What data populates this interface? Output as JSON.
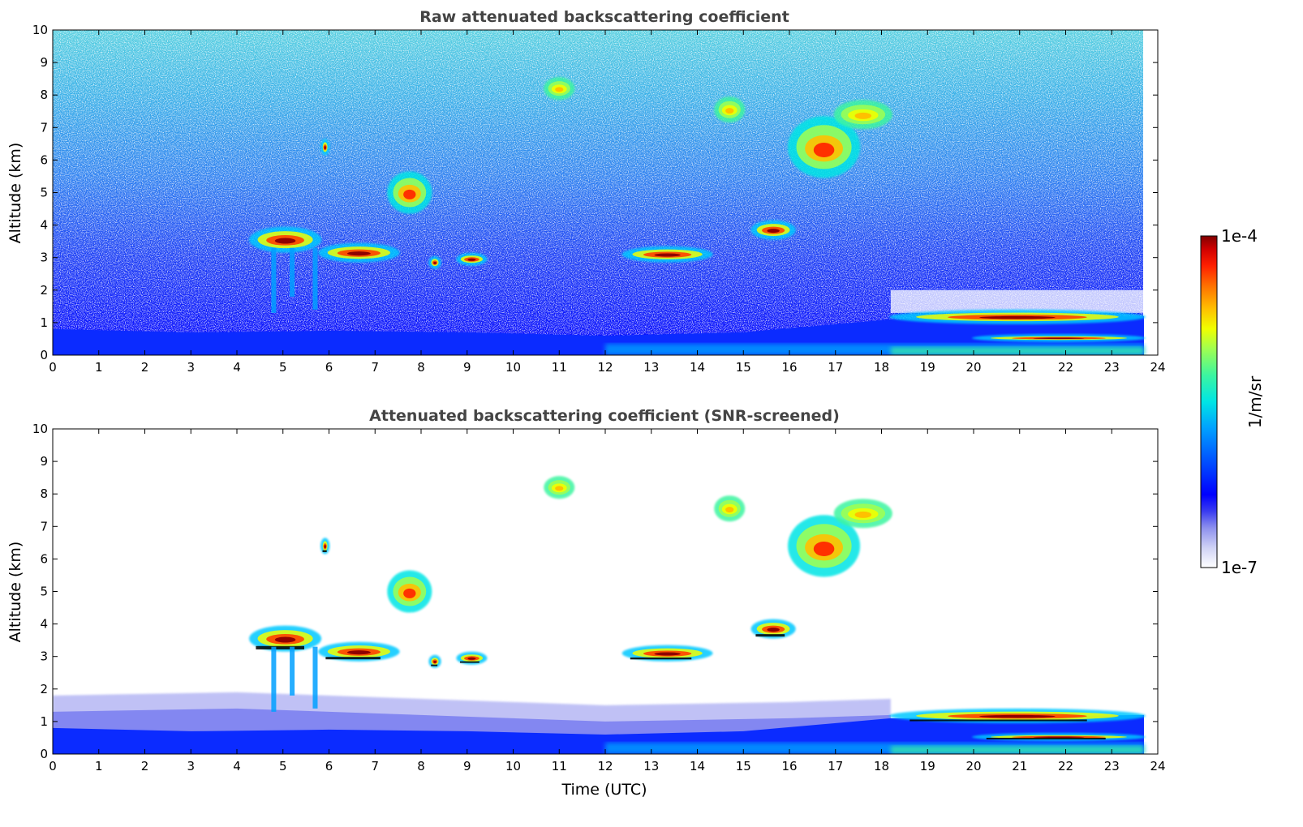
{
  "figure": {
    "colorbar": {
      "label": "1/m/sr",
      "max_label": "1e-4",
      "min_label": "1e-7",
      "scale": "log",
      "colormap": [
        "#ffffff",
        "#cfd2f5",
        "#8d90ee",
        "#3a3cf0",
        "#0000ff",
        "#0050ff",
        "#00a0ff",
        "#00e5e5",
        "#3cf5a0",
        "#a0ff50",
        "#f0ff00",
        "#ffc000",
        "#ff7000",
        "#ff2000",
        "#d00000",
        "#800000"
      ]
    }
  },
  "chart_data": [
    {
      "type": "heatmap",
      "title": "Raw attenuated backscattering coefficient",
      "xlabel": "",
      "ylabel": "Altitude (km)",
      "xlim": [
        0,
        24
      ],
      "ylim": [
        0,
        10
      ],
      "xticks": [
        "0",
        "1",
        "2",
        "3",
        "4",
        "5",
        "6",
        "7",
        "8",
        "9",
        "10",
        "11",
        "12",
        "13",
        "14",
        "15",
        "16",
        "17",
        "18",
        "19",
        "20",
        "21",
        "22",
        "23",
        "24"
      ],
      "yticks": [
        "0",
        "1",
        "2",
        "3",
        "4",
        "5",
        "6",
        "7",
        "8",
        "9",
        "10"
      ],
      "data_end_time": 23.7,
      "boundary_layer_top_km": [
        [
          0,
          0.8
        ],
        [
          3,
          0.7
        ],
        [
          6,
          0.75
        ],
        [
          9,
          0.7
        ],
        [
          12,
          0.6
        ],
        [
          15,
          0.7
        ],
        [
          18.2,
          1.1
        ],
        [
          23.7,
          1.2
        ]
      ],
      "features": [
        {
          "kind": "cloud",
          "t_start": 4.3,
          "t_end": 5.8,
          "base_km": 3.2,
          "top_km": 3.9,
          "intensity": "high"
        },
        {
          "kind": "cloud",
          "t_start": 5.8,
          "t_end": 7.5,
          "base_km": 2.9,
          "top_km": 3.4,
          "intensity": "high"
        },
        {
          "kind": "cloud",
          "t_start": 8.2,
          "t_end": 8.4,
          "base_km": 2.7,
          "top_km": 3.0,
          "intensity": "high"
        },
        {
          "kind": "cloud",
          "t_start": 8.8,
          "t_end": 9.4,
          "base_km": 2.8,
          "top_km": 3.1,
          "intensity": "high"
        },
        {
          "kind": "cloud",
          "t_start": 12.4,
          "t_end": 14.3,
          "base_km": 2.9,
          "top_km": 3.3,
          "intensity": "high"
        },
        {
          "kind": "cloud",
          "t_start": 15.2,
          "t_end": 16.1,
          "base_km": 3.6,
          "top_km": 4.1,
          "intensity": "high"
        },
        {
          "kind": "cloud",
          "t_start": 7.3,
          "t_end": 8.2,
          "base_km": 4.4,
          "top_km": 5.6,
          "intensity": "medium"
        },
        {
          "kind": "cloud",
          "t_start": 5.85,
          "t_end": 5.98,
          "base_km": 6.2,
          "top_km": 6.6,
          "intensity": "high"
        },
        {
          "kind": "cloud",
          "t_start": 16.0,
          "t_end": 17.5,
          "base_km": 5.5,
          "top_km": 7.3,
          "intensity": "medium"
        },
        {
          "kind": "cloud",
          "t_start": 17.0,
          "t_end": 18.2,
          "base_km": 7.0,
          "top_km": 7.8,
          "intensity": "low"
        },
        {
          "kind": "cloud",
          "t_start": 14.4,
          "t_end": 15.0,
          "base_km": 7.2,
          "top_km": 7.9,
          "intensity": "low"
        },
        {
          "kind": "cloud",
          "t_start": 10.7,
          "t_end": 11.3,
          "base_km": 7.9,
          "top_km": 8.5,
          "intensity": "low"
        },
        {
          "kind": "cloud",
          "t_start": 18.2,
          "t_end": 23.7,
          "base_km": 1.0,
          "top_km": 1.35,
          "intensity": "high"
        },
        {
          "kind": "cloud",
          "t_start": 20.0,
          "t_end": 23.7,
          "base_km": 0.45,
          "top_km": 0.6,
          "intensity": "high"
        }
      ]
    },
    {
      "type": "heatmap",
      "title": "Attenuated backscattering coefficient (SNR-screened)",
      "xlabel": "Time (UTC)",
      "ylabel": "Altitude (km)",
      "xlim": [
        0,
        24
      ],
      "ylim": [
        0,
        10
      ],
      "xticks": [
        "0",
        "1",
        "2",
        "3",
        "4",
        "5",
        "6",
        "7",
        "8",
        "9",
        "10",
        "11",
        "12",
        "13",
        "14",
        "15",
        "16",
        "17",
        "18",
        "19",
        "20",
        "21",
        "22",
        "23",
        "24"
      ],
      "yticks": [
        "0",
        "1",
        "2",
        "3",
        "4",
        "5",
        "6",
        "7",
        "8",
        "9",
        "10"
      ],
      "data_end_time": 23.7,
      "screened": true
    }
  ]
}
